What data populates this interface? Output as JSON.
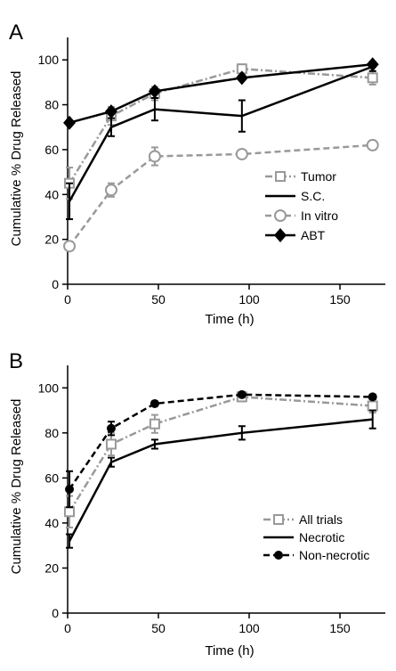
{
  "chart_data": [
    {
      "type": "line",
      "panel": "A",
      "xlabel": "Time (h)",
      "ylabel": "Cumulative % Drug Released",
      "xlim": [
        0,
        175
      ],
      "ylim": [
        0,
        110
      ],
      "xticks": [
        0,
        50,
        100,
        150
      ],
      "yticks": [
        0,
        20,
        40,
        60,
        80,
        100
      ],
      "legend_position": "right-middle",
      "series": [
        {
          "name": "Tumor",
          "x": [
            1,
            24,
            48,
            96,
            168
          ],
          "y": [
            45,
            75,
            85,
            96,
            92
          ],
          "err": [
            7,
            4,
            3,
            2,
            3
          ],
          "color": "#999999",
          "dash": "dashdot",
          "marker": "square-open"
        },
        {
          "name": "S.C.",
          "x": [
            1,
            24,
            48,
            96,
            168
          ],
          "y": [
            37,
            70,
            78,
            75,
            97
          ],
          "err": [
            8,
            4,
            5,
            7,
            2
          ],
          "color": "#000000",
          "dash": "solid",
          "marker": "none"
        },
        {
          "name": "In vitro",
          "x": [
            1,
            24,
            48,
            96,
            168
          ],
          "y": [
            17,
            42,
            57,
            58,
            62
          ],
          "err": [
            2,
            3,
            4,
            1,
            2
          ],
          "color": "#999999",
          "dash": "dashed",
          "marker": "circle-open"
        },
        {
          "name": "ABT",
          "x": [
            1,
            24,
            48,
            96,
            168
          ],
          "y": [
            72,
            77,
            86,
            92,
            98
          ],
          "err": [
            1,
            1,
            1,
            1,
            1
          ],
          "color": "#000000",
          "dash": "solid",
          "marker": "diamond"
        }
      ]
    },
    {
      "type": "line",
      "panel": "B",
      "xlabel": "Time (h)",
      "ylabel": "Cumulative % Drug Released",
      "xlim": [
        0,
        175
      ],
      "ylim": [
        0,
        110
      ],
      "xticks": [
        0,
        50,
        100,
        150
      ],
      "yticks": [
        0,
        20,
        40,
        60,
        80,
        100
      ],
      "legend_position": "bottom-right",
      "series": [
        {
          "name": "All trials",
          "x": [
            1,
            24,
            48,
            96,
            168
          ],
          "y": [
            45,
            75,
            84,
            96,
            92
          ],
          "err": [
            7,
            5,
            4,
            2,
            3
          ],
          "color": "#999999",
          "dash": "dashdot",
          "marker": "square-open"
        },
        {
          "name": "Necrotic",
          "x": [
            1,
            24,
            48,
            96,
            168
          ],
          "y": [
            32,
            67,
            75,
            80,
            86
          ],
          "err": [
            3,
            2,
            2,
            3,
            4
          ],
          "color": "#000000",
          "dash": "solid",
          "marker": "none"
        },
        {
          "name": "Non-necrotic",
          "x": [
            1,
            24,
            48,
            96,
            168
          ],
          "y": [
            55,
            82,
            93,
            97,
            96
          ],
          "err": [
            8,
            3,
            1,
            1,
            1
          ],
          "color": "#000000",
          "dash": "dashed",
          "marker": "circle"
        }
      ]
    }
  ]
}
